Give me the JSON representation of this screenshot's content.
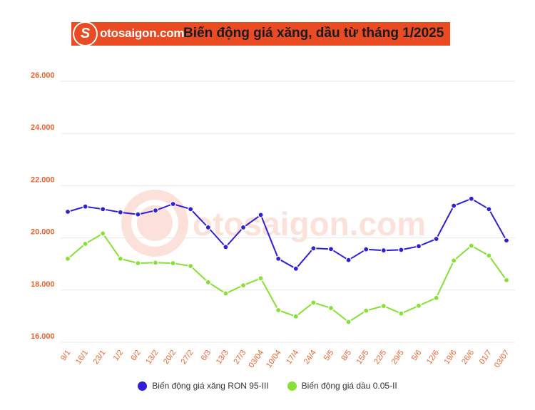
{
  "header": {
    "logo_letter": "S",
    "logo_text": "otosaigon.com",
    "title": "Biến động giá xăng, dầu từ tháng 1/2025"
  },
  "watermark": {
    "text": "otosaigon.com"
  },
  "colors": {
    "brand": "#ea4b23",
    "series_ron95": "#2f1fd6",
    "series_diesel": "#86e133",
    "axis_label": "#e8632d",
    "grid": "#e8e8e8"
  },
  "chart_data": {
    "type": "line",
    "title": "Biến động giá xăng, dầu từ tháng 1/2025",
    "xlabel": "",
    "ylabel": "",
    "ylim": [
      16000,
      26000
    ],
    "yticks": [
      "16.000",
      "18.000",
      "20.000",
      "22.000",
      "24.000",
      "26.000"
    ],
    "grid": true,
    "legend_position": "bottom",
    "categories": [
      "9/1",
      "16/1",
      "23/1",
      "1/2",
      "6/2",
      "13/2",
      "20/2",
      "27/2",
      "6/3",
      "13/3",
      "27/3",
      "03/04",
      "10/04",
      "17/4",
      "24/4",
      "5/5",
      "8/5",
      "15/5",
      "22/5",
      "29/5",
      "5/6",
      "12/6",
      "19/6",
      "26/6",
      "01/7",
      "03/07"
    ],
    "series": [
      {
        "name": "Biến động giá xăng RON 95-III",
        "color": "#2f1fd6",
        "values": [
          21000,
          21200,
          21100,
          20980,
          20900,
          21050,
          21300,
          21100,
          20400,
          19650,
          20400,
          20880,
          19200,
          18820,
          19600,
          19570,
          19150,
          19560,
          19520,
          19540,
          19680,
          19960,
          21230,
          21500,
          21100,
          19900
        ]
      },
      {
        "name": "Biến động giá dầu 0.05-II",
        "color": "#86e133",
        "values": [
          19200,
          19770,
          20170,
          19200,
          19030,
          19050,
          19030,
          18920,
          18300,
          17870,
          18180,
          18450,
          17230,
          16990,
          17520,
          17310,
          16780,
          17210,
          17390,
          17100,
          17400,
          17700,
          19130,
          19700,
          19320,
          18380
        ]
      }
    ]
  }
}
